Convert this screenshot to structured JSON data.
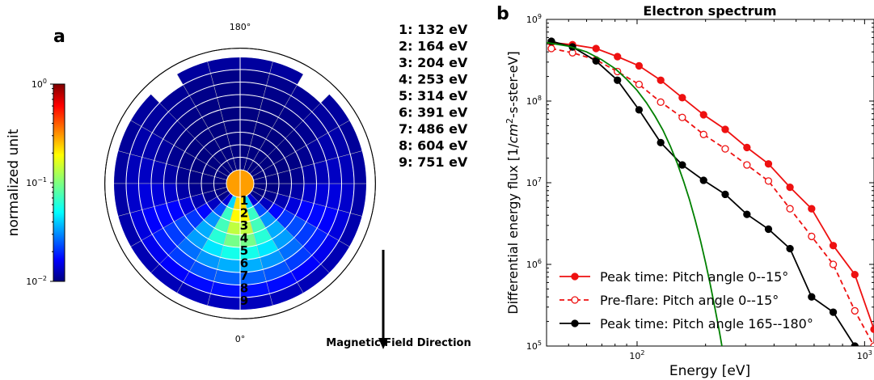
{
  "panel_a": {
    "label": "a",
    "angle_top": "180°",
    "angle_bottom": "0°",
    "colorbar": {
      "label": "normalized unit",
      "ticks": [
        {
          "base": "10",
          "exp": "0",
          "value": 1
        },
        {
          "base": "10",
          "exp": "−1",
          "value": 0.1
        },
        {
          "base": "10",
          "exp": "−2",
          "value": 0.01
        }
      ]
    },
    "energy_list": [
      "1: 132 eV",
      "2: 164 eV",
      "3: 204 eV",
      "4: 253 eV",
      "5: 314 eV",
      "6: 391 eV",
      "7: 486 eV",
      "8: 604 eV",
      "9: 751 eV"
    ],
    "ring_numbers": [
      "1",
      "2",
      "3",
      "4",
      "5",
      "6",
      "7",
      "8",
      "9"
    ],
    "arrow_label": "Magnetic Field Direction"
  },
  "panel_b": {
    "label": "b",
    "chart_data": {
      "type": "line",
      "title": "Electron spectrum",
      "xlabel": "Energy [eV]",
      "ylabel_main": "Differential energy flux [1/",
      "ylabel_unit_base": "cm",
      "ylabel_unit_exp": "2",
      "ylabel_tail": "-s-ster-eV]",
      "xscale": "log",
      "yscale": "log",
      "xlim": [
        40,
        1100
      ],
      "ylim": [
        100000,
        1000000000
      ],
      "xticks": [
        {
          "base": "10",
          "exp": "2",
          "value": 100
        },
        {
          "base": "10",
          "exp": "3",
          "value": 1000
        }
      ],
      "yticks": [
        {
          "base": "10",
          "exp": "5",
          "value": 100000
        },
        {
          "base": "10",
          "exp": "6",
          "value": 1000000
        },
        {
          "base": "10",
          "exp": "7",
          "value": 10000000
        },
        {
          "base": "10",
          "exp": "8",
          "value": 100000000
        },
        {
          "base": "10",
          "exp": "9",
          "value": 1000000000
        }
      ],
      "legend_position": "lower-left",
      "series": [
        {
          "name": "Peak time: Pitch angle 0--15°",
          "color": "#ee1111",
          "dash": "solid",
          "marker": "filled-circle",
          "x": [
            42,
            52,
            66,
            82,
            102,
            127,
            158,
            196,
            244,
            304,
            378,
            470,
            585,
            728,
            906,
            1100
          ],
          "y": [
            520000000,
            490000000,
            440000000,
            350000000,
            270000000,
            180000000,
            110000000,
            68000000,
            45000000,
            27000000,
            17000000,
            8800000,
            4800000,
            1700000,
            750000,
            160000
          ]
        },
        {
          "name": "Pre-flare: Pitch angle 0--15°",
          "color": "#ee1111",
          "dash": "dashed",
          "marker": "open-circle",
          "x": [
            42,
            52,
            66,
            82,
            102,
            127,
            158,
            196,
            244,
            304,
            378,
            470,
            585,
            728,
            906,
            1100
          ],
          "y": [
            440000000,
            390000000,
            320000000,
            230000000,
            160000000,
            97000000,
            63000000,
            39000000,
            26000000,
            16500000,
            10500000,
            4800000,
            2200000,
            1000000,
            270000,
            100000
          ]
        },
        {
          "name": "Peak time: Pitch angle 165--180°",
          "color": "#000000",
          "dash": "solid",
          "marker": "filled-circle",
          "x": [
            42,
            52,
            66,
            82,
            102,
            127,
            158,
            196,
            244,
            304,
            378,
            470,
            585,
            728,
            906
          ],
          "y": [
            540000000,
            460000000,
            310000000,
            180000000,
            78000000,
            31000000,
            16500000,
            10700000,
            7200000,
            4100000,
            2700000,
            1560000,
            400000,
            260000,
            100000
          ]
        },
        {
          "name": "",
          "color": "#008000",
          "dash": "solid",
          "marker": "none",
          "x": [
            40,
            50,
            60,
            70,
            80,
            90,
            100,
            110,
            120,
            130,
            140,
            150,
            160,
            170,
            180,
            190,
            200,
            210,
            220,
            230,
            240
          ],
          "y": [
            520000000,
            470000000,
            400000000,
            320000000,
            250000000,
            185000000,
            135000000,
            95000000,
            65000000,
            44000000,
            28000000,
            17500000,
            10500000,
            6200000,
            3500000,
            1950000,
            1050000,
            560000,
            290000,
            150000,
            76000
          ]
        }
      ]
    }
  }
}
